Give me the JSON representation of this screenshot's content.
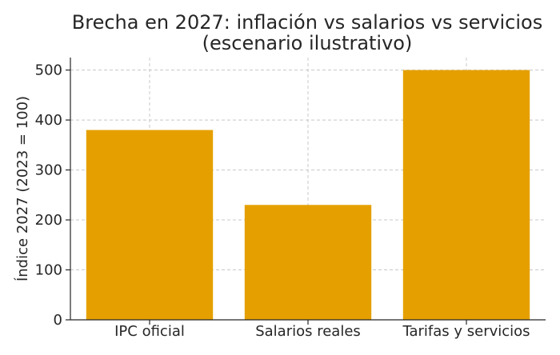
{
  "chart_data": {
    "type": "bar",
    "title_line1": "Brecha en 2027: inflación vs salarios vs servicios",
    "title_line2": "(escenario ilustrativo)",
    "xlabel": "",
    "ylabel": "Índice 2027 (2023 = 100)",
    "categories": [
      "IPC oficial",
      "Salarios reales",
      "Tarifas y servicios"
    ],
    "values": [
      380,
      230,
      500
    ],
    "ylim": [
      0,
      525
    ],
    "yticks": [
      0,
      100,
      200,
      300,
      400,
      500
    ],
    "grid": true,
    "bar_color": "#E5A000",
    "grid_color": "#c8c8c8"
  }
}
